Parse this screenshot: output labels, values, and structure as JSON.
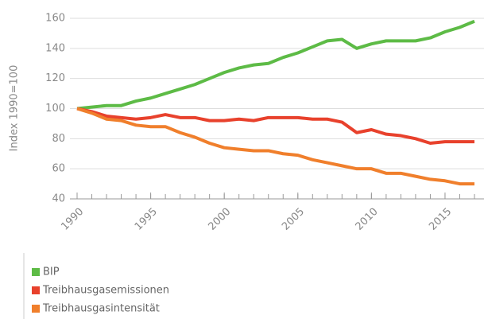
{
  "chart_data": {
    "type": "line",
    "y_label": "Index 1990=100",
    "x": [
      1990,
      1991,
      1992,
      1993,
      1994,
      1995,
      1996,
      1997,
      1998,
      1999,
      2000,
      2001,
      2002,
      2003,
      2004,
      2005,
      2006,
      2007,
      2008,
      2009,
      2010,
      2011,
      2012,
      2013,
      2014,
      2015,
      2016,
      2017
    ],
    "series": [
      {
        "name": "BIP",
        "color": "#5dbb46",
        "values": [
          100,
          101,
          102,
          102,
          105,
          107,
          110,
          113,
          116,
          120,
          124,
          127,
          129,
          130,
          134,
          137,
          141,
          145,
          146,
          140,
          143,
          145,
          145,
          145,
          147,
          151,
          154,
          158
        ]
      },
      {
        "name": "Treibhausgasemissionen",
        "color": "#e8412c",
        "values": [
          100,
          98,
          95,
          94,
          93,
          94,
          96,
          94,
          94,
          92,
          92,
          93,
          92,
          94,
          94,
          94,
          93,
          93,
          91,
          84,
          86,
          83,
          82,
          80,
          77,
          78,
          78,
          78
        ]
      },
      {
        "name": "Treibhausgasintensität",
        "color": "#f07f2c",
        "values": [
          100,
          97,
          93,
          92,
          89,
          88,
          88,
          84,
          81,
          77,
          74,
          73,
          72,
          72,
          70,
          69,
          66,
          64,
          62,
          60,
          60,
          57,
          57,
          55,
          53,
          52,
          50,
          50
        ]
      }
    ],
    "xlim": [
      1990,
      2017
    ],
    "xticks": [
      1990,
      1995,
      2000,
      2005,
      2010,
      2015
    ],
    "ylim": [
      40,
      160
    ],
    "yticks": [
      40,
      60,
      80,
      100,
      120,
      140,
      160
    ],
    "grid": true
  }
}
